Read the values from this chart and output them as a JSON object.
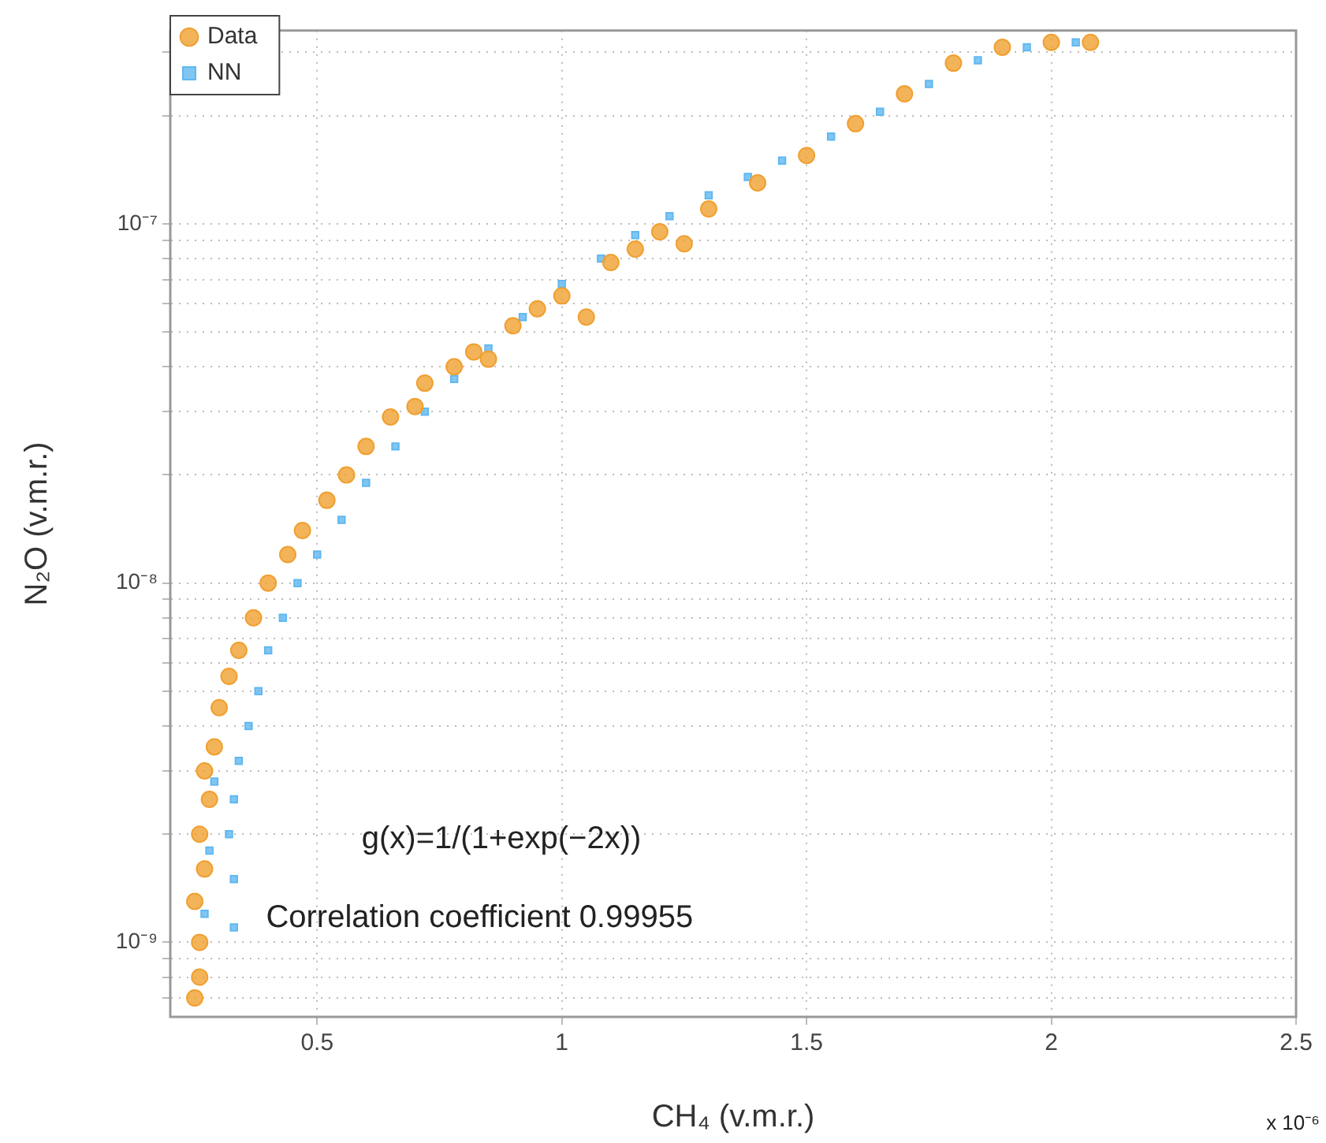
{
  "chart_data": {
    "type": "scatter",
    "xlabel": "CH₄ (v.m.r.)",
    "ylabel": "N₂O (v.m.r.)",
    "log": "y",
    "grid": true,
    "legend": "top left",
    "xlim": [
      0.2,
      2.5
    ],
    "xticks": [
      0.5,
      1,
      1.5,
      2,
      2.5
    ],
    "ylim": [
      6.2e-10,
      3.45e-07
    ],
    "yticks": [
      {
        "value": 7e-10,
        "label": null
      },
      {
        "value": 8e-10,
        "label": null
      },
      {
        "value": 9e-10,
        "label": null
      },
      {
        "value": 1e-09,
        "label": "10⁻⁹"
      },
      {
        "value": 2e-09,
        "label": null
      },
      {
        "value": 3e-09,
        "label": null
      },
      {
        "value": 4e-09,
        "label": null
      },
      {
        "value": 5e-09,
        "label": null
      },
      {
        "value": 6e-09,
        "label": null
      },
      {
        "value": 7e-09,
        "label": null
      },
      {
        "value": 8e-09,
        "label": null
      },
      {
        "value": 9e-09,
        "label": null
      },
      {
        "value": 1e-08,
        "label": "10⁻⁸"
      },
      {
        "value": 2e-08,
        "label": null
      },
      {
        "value": 3e-08,
        "label": null
      },
      {
        "value": 4e-08,
        "label": null
      },
      {
        "value": 5e-08,
        "label": null
      },
      {
        "value": 6e-08,
        "label": null
      },
      {
        "value": 7e-08,
        "label": null
      },
      {
        "value": 8e-08,
        "label": null
      },
      {
        "value": 9e-08,
        "label": null
      },
      {
        "value": 1e-07,
        "label": "10⁻⁷"
      },
      {
        "value": 2e-07,
        "label": null
      },
      {
        "value": 3e-07,
        "label": null
      }
    ],
    "annotations": [
      "g(x)=1/(1+exp(−2x))",
      "Correlation coefficient 0.99955",
      "x 10⁻⁶"
    ],
    "series": [
      {
        "name": "Data",
        "color": "#f0a030",
        "marker": "circle",
        "x": [
          0.25,
          0.26,
          0.26,
          0.25,
          0.27,
          0.26,
          0.28,
          0.27,
          0.29,
          0.3,
          0.32,
          0.34,
          0.37,
          0.4,
          0.44,
          0.47,
          0.52,
          0.56,
          0.6,
          0.65,
          0.7,
          0.72,
          0.78,
          0.82,
          0.85,
          0.9,
          0.95,
          1.0,
          1.05,
          1.1,
          1.15,
          1.2,
          1.25,
          1.3,
          1.4,
          1.5,
          1.6,
          1.7,
          1.8,
          1.9,
          2.0,
          2.08
        ],
        "values": [
          7e-10,
          8e-10,
          1e-09,
          1.3e-09,
          1.6e-09,
          2e-09,
          2.5e-09,
          3e-09,
          3.5e-09,
          4.5e-09,
          5.5e-09,
          6.5e-09,
          8e-09,
          1e-08,
          1.2e-08,
          1.4e-08,
          1.7e-08,
          2e-08,
          2.4e-08,
          2.9e-08,
          3.1e-08,
          3.6e-08,
          4e-08,
          4.4e-08,
          4.2e-08,
          5.2e-08,
          5.8e-08,
          6.3e-08,
          5.5e-08,
          7.8e-08,
          8.5e-08,
          9.5e-08,
          8.8e-08,
          1.1e-07,
          1.3e-07,
          1.55e-07,
          1.9e-07,
          2.3e-07,
          2.8e-07,
          3.1e-07,
          3.2e-07,
          3.2e-07
        ]
      },
      {
        "name": "NN",
        "color": "#60b8f0",
        "marker": "square",
        "x": [
          0.27,
          0.28,
          0.29,
          0.33,
          0.33,
          0.32,
          0.33,
          0.34,
          0.36,
          0.38,
          0.4,
          0.43,
          0.46,
          0.5,
          0.55,
          0.6,
          0.66,
          0.72,
          0.78,
          0.85,
          0.92,
          1.0,
          1.08,
          1.15,
          1.22,
          1.3,
          1.38,
          1.45,
          1.55,
          1.65,
          1.75,
          1.85,
          1.95,
          2.05
        ],
        "values": [
          1.2e-09,
          1.8e-09,
          2.8e-09,
          1.1e-09,
          1.5e-09,
          2e-09,
          2.5e-09,
          3.2e-09,
          4e-09,
          5e-09,
          6.5e-09,
          8e-09,
          1e-08,
          1.2e-08,
          1.5e-08,
          1.9e-08,
          2.4e-08,
          3e-08,
          3.7e-08,
          4.5e-08,
          5.5e-08,
          6.8e-08,
          8e-08,
          9.3e-08,
          1.05e-07,
          1.2e-07,
          1.35e-07,
          1.5e-07,
          1.75e-07,
          2.05e-07,
          2.45e-07,
          2.85e-07,
          3.1e-07,
          3.2e-07
        ]
      }
    ]
  }
}
